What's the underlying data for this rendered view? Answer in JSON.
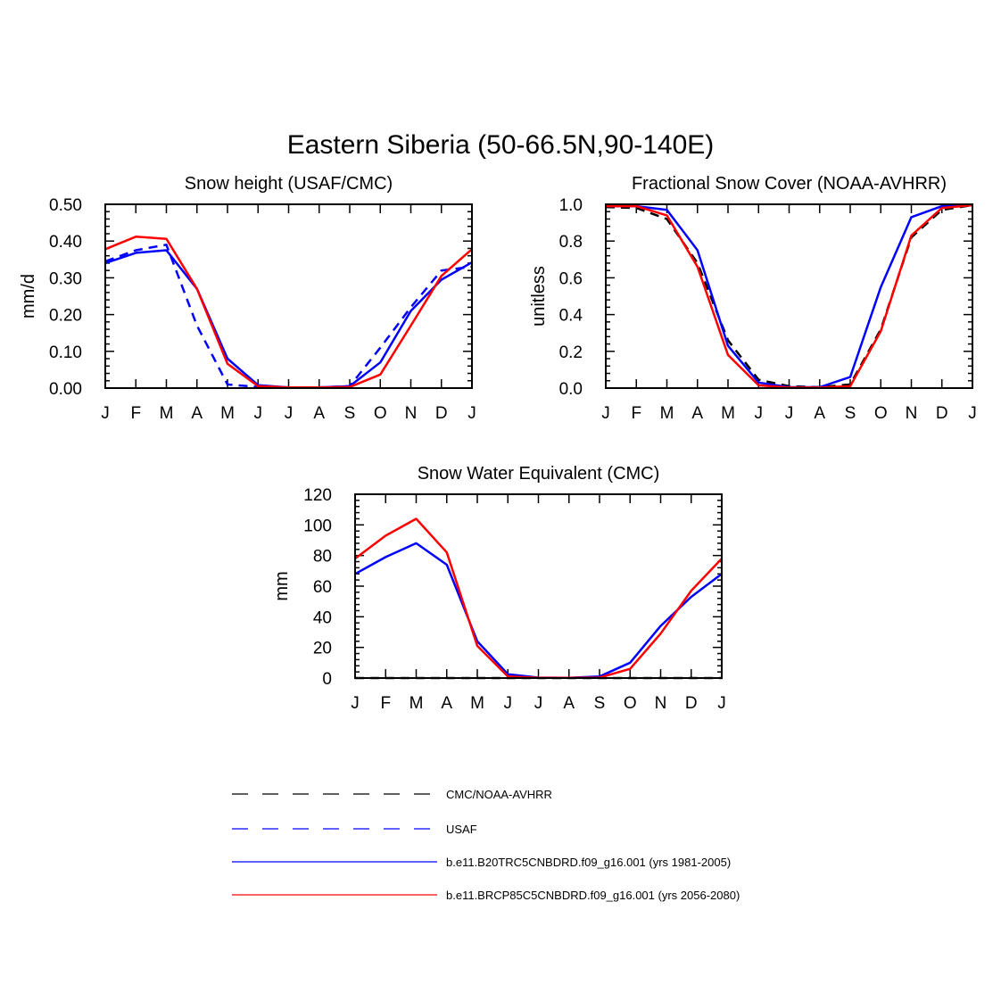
{
  "figure_title": "Eastern Siberia (50-66.5N,90-140E)",
  "legend": [
    {
      "label": "CMC/NOAA-AVHRR",
      "color": "#000000",
      "dash": "dashed"
    },
    {
      "label": "USAF",
      "color": "#0000ff",
      "dash": "dashed"
    },
    {
      "label": "b.e11.B20TRC5CNBDRD.f09_g16.001 (yrs 1981-2005)",
      "color": "#0000ff",
      "dash": "solid"
    },
    {
      "label": "b.e11.BRCP85C5CNBDRD.f09_g16.001 (yrs 2056-2080)",
      "color": "#ff0000",
      "dash": "solid"
    }
  ],
  "chart_data": [
    {
      "id": "snow-height",
      "type": "line",
      "title": "Snow height (USAF/CMC)",
      "xlabel": "",
      "ylabel": "mm/d",
      "categories": [
        "J",
        "F",
        "M",
        "A",
        "M",
        "J",
        "J",
        "A",
        "S",
        "O",
        "N",
        "D",
        "J"
      ],
      "ylim": [
        0,
        0.5
      ],
      "yticks": [
        "0.00",
        "0.10",
        "0.20",
        "0.30",
        "0.40",
        "0.50"
      ],
      "series": [
        {
          "name": "USAF",
          "color": "#0000ff",
          "dash": "dashed",
          "values": [
            0.345,
            0.375,
            0.39,
            0.17,
            0.01,
            0.003,
            0.002,
            0.002,
            0.005,
            0.11,
            0.22,
            0.32,
            0.33
          ]
        },
        {
          "name": "b.e11.B20TRC5CNBDRD.f09_g16.001 (yrs 1981-2005)",
          "color": "#0000ff",
          "dash": "solid",
          "values": [
            0.34,
            0.368,
            0.375,
            0.27,
            0.08,
            0.008,
            0.002,
            0.002,
            0.005,
            0.07,
            0.21,
            0.295,
            0.342
          ]
        },
        {
          "name": "b.e11.BRCP85C5CNBDRD.f09_g16.001 (yrs 2056-2080)",
          "color": "#ff0000",
          "dash": "solid",
          "values": [
            0.378,
            0.412,
            0.406,
            0.27,
            0.066,
            0.005,
            0.002,
            0.002,
            0.003,
            0.037,
            0.17,
            0.305,
            0.378
          ]
        }
      ]
    },
    {
      "id": "snow-cover",
      "type": "line",
      "title": "Fractional Snow Cover (NOAA-AVHRR)",
      "xlabel": "",
      "ylabel": "unitless",
      "categories": [
        "J",
        "F",
        "M",
        "A",
        "M",
        "J",
        "J",
        "A",
        "S",
        "O",
        "N",
        "D",
        "J"
      ],
      "ylim": [
        0,
        1.0
      ],
      "yticks": [
        "0.0",
        "0.2",
        "0.4",
        "0.6",
        "0.8",
        "1.0"
      ],
      "series": [
        {
          "name": "CMC/NOAA-AVHRR",
          "color": "#000000",
          "dash": "dashed",
          "values": [
            0.985,
            0.98,
            0.92,
            0.68,
            0.26,
            0.045,
            0.01,
            0.005,
            0.02,
            0.32,
            0.82,
            0.97,
            0.995
          ]
        },
        {
          "name": "b.e11.B20TRC5CNBDRD.f09_g16.001 (yrs 1981-2005)",
          "color": "#0000ff",
          "dash": "solid",
          "values": [
            0.99,
            0.99,
            0.97,
            0.75,
            0.23,
            0.03,
            0.005,
            0.005,
            0.06,
            0.55,
            0.93,
            0.99,
            0.995
          ]
        },
        {
          "name": "b.e11.BRCP85C5CNBDRD.f09_g16.001 (yrs 2056-2080)",
          "color": "#ff0000",
          "dash": "solid",
          "values": [
            0.99,
            0.99,
            0.94,
            0.66,
            0.18,
            0.015,
            0.003,
            0.003,
            0.01,
            0.31,
            0.83,
            0.98,
            0.995
          ]
        }
      ]
    },
    {
      "id": "swe",
      "type": "line",
      "title": "Snow Water Equivalent (CMC)",
      "xlabel": "",
      "ylabel": "mm",
      "categories": [
        "J",
        "F",
        "M",
        "A",
        "M",
        "J",
        "J",
        "A",
        "S",
        "O",
        "N",
        "D",
        "J"
      ],
      "ylim": [
        0,
        120
      ],
      "yticks": [
        "0",
        "20",
        "40",
        "60",
        "80",
        "100",
        "120"
      ],
      "series": [
        {
          "name": "CMC/NOAA-AVHRR",
          "color": "#000000",
          "dash": "dashed",
          "values": [
            0,
            0,
            0,
            0,
            0,
            0,
            0,
            0,
            0,
            0,
            0,
            0,
            0
          ]
        },
        {
          "name": "b.e11.B20TRC5CNBDRD.f09_g16.001 (yrs 1981-2005)",
          "color": "#0000ff",
          "dash": "solid",
          "values": [
            68,
            79,
            88,
            74,
            24,
            2.5,
            0.3,
            0.2,
            1,
            10,
            34,
            53,
            68
          ]
        },
        {
          "name": "b.e11.BRCP85C5CNBDRD.f09_g16.001 (yrs 2056-2080)",
          "color": "#ff0000",
          "dash": "solid",
          "values": [
            78,
            93,
            104,
            82,
            21,
            1,
            0.2,
            0.2,
            0.3,
            6,
            29,
            57,
            78
          ]
        }
      ]
    }
  ]
}
